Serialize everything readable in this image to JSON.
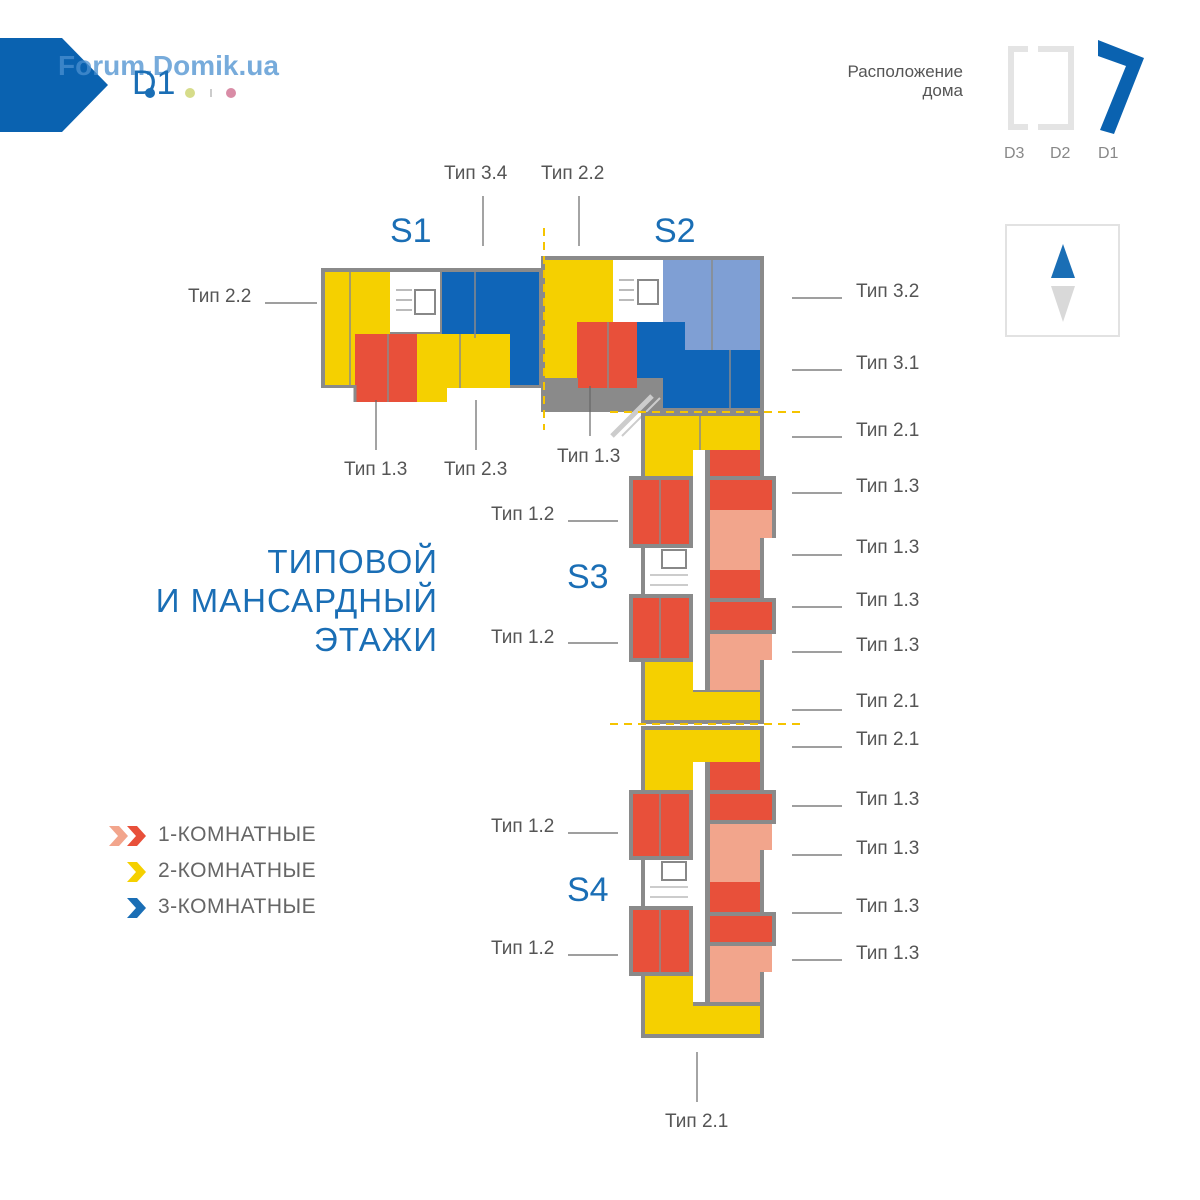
{
  "header": {
    "watermark": "Forum.Domik.ua",
    "house_code": "D1",
    "dot_colors": [
      "#1a6eb5",
      "#d6dc8a",
      "#d98ca6"
    ]
  },
  "location": {
    "caption_line1": "Расположение",
    "caption_line2": "дома",
    "codes": [
      "D3",
      "D2",
      "D1"
    ]
  },
  "compass": {
    "icon": "north-arrow-icon"
  },
  "title": {
    "line1": "ТИПОВОЙ",
    "line2": "И МАНСАРДНЫЙ",
    "line3": "ЭТАЖИ"
  },
  "sections": [
    "S1",
    "S2",
    "S3",
    "S4"
  ],
  "unit_labels": {
    "s1_top": "Тип 3.4",
    "s2_top": "Тип 2.2",
    "s1_left": "Тип 2.2",
    "s1_bottom_a": "Тип 1.3",
    "s1_bottom_b": "Тип 2.3",
    "s2_bottom": "Тип 1.3",
    "r1": "Тип 3.2",
    "r2": "Тип 3.1",
    "r3": "Тип 2.1",
    "r4": "Тип 1.3",
    "r5": "Тип 1.3",
    "r6": "Тип 1.3",
    "r7": "Тип 1.3",
    "r8": "Тип 2.1",
    "r9": "Тип 2.1",
    "r10": "Тип 1.3",
    "r11": "Тип 1.3",
    "r12": "Тип 1.3",
    "r13": "Тип 1.3",
    "l1": "Тип 1.2",
    "l2": "Тип 1.2",
    "l3": "Тип 1.2",
    "l4": "Тип 1.2",
    "bottom": "Тип 2.1"
  },
  "legend": [
    {
      "label": "1-КОМНАТНЫЕ",
      "colors": [
        "#f2a58c",
        "#e8503a"
      ]
    },
    {
      "label": "2-КОМНАТНЫЕ",
      "colors": [
        "#f5d000"
      ]
    },
    {
      "label": "3-КОМНАТНЫЕ",
      "colors": [
        "#1a6eb5"
      ]
    }
  ],
  "colors": {
    "brand_blue": "#0a62b0",
    "red": "#e8503a",
    "salmon": "#f2a58c",
    "yellow": "#f5d000",
    "blue": "#0f65b8",
    "light_blue": "#7f9fd4"
  }
}
